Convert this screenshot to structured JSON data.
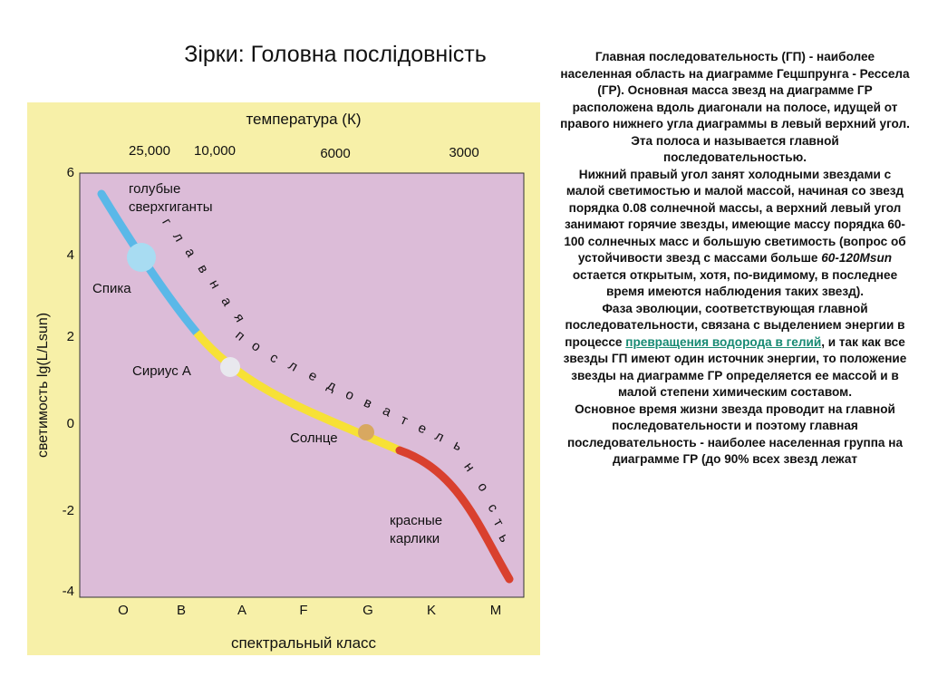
{
  "title": "Зірки: Головна послідовність",
  "diagram": {
    "axis_top_label": "температура (К)",
    "temperature_ticks": [
      "25,000",
      "10,000",
      "6000",
      "3000"
    ],
    "y_axis_label": "светимость lg(L/Lsun)",
    "y_ticks": [
      "6",
      "4",
      "2",
      "0",
      "-2",
      "-4"
    ],
    "x_axis_label": "спектральный класс",
    "spectral_classes": [
      "O",
      "B",
      "A",
      "F",
      "G",
      "K",
      "M"
    ],
    "band_label_chars": [
      "г",
      "л",
      "а",
      "в",
      "н",
      "а",
      "я",
      "п",
      "о",
      "с",
      "л",
      "е",
      "д",
      "о",
      "в",
      "а",
      "т",
      "е",
      "л",
      "ь",
      "н",
      "о",
      "с",
      "т",
      "ь"
    ],
    "labels": {
      "blue_supergiants_1": "голубые",
      "blue_supergiants_2": "сверхгиганты",
      "spica": "Спика",
      "sirius": "Сириус А",
      "sun": "Солнце",
      "red_dwarfs_1": "красные",
      "red_dwarfs_2": "карлики"
    },
    "colors": {
      "background": "#f7f0a8",
      "plot_area": "#dcbcd8",
      "hot_segment": "#5ab8e8",
      "mid_segment": "#f7e136",
      "cool_segment": "#d9402e",
      "spica_marker": "#a8dcf2",
      "sirius_marker": "#e8e8ee",
      "sun_marker": "#d8a860"
    }
  },
  "text": {
    "p1": "Главная последовательность (ГП) - наиболее населенная область на диаграмме Гецшпрунга - Рессела (ГР). Основная масса звезд на диаграмме ГР расположена вдоль диагонали на полосе, идущей от правого нижнего угла диаграммы в левый верхний угол. Эта полоса и называется главной последовательностью.",
    "p2a": "Нижний правый угол занят холодными звездами с малой светимостью и малой массой, начиная со звезд порядка 0.08 солнечной массы, а верхний левый угол занимают горячие звезды, имеющие массу порядка 60-100 солнечных масс и большую светимость (вопрос об устойчивости звезд с массами больше ",
    "p2_em": "60-120Msun",
    "p2b": " остается открытым, хотя, по-видимому, в последнее время имеются наблюдения таких звезд).",
    "p3a": "Фаза эволюции, соответствующая главной последовательности, связана с выделением энергии в процессе ",
    "p3_link": "превращения водорода в гелий",
    "p3b": ", и так как все звезды ГП имеют один источник энергии, то положение звезды на диаграмме ГР определяется ее массой и в малой степени химическим составом.",
    "p4": "Основное время жизни звезда проводит на главной последовательности и поэтому главная последовательность - наиболее населенная группа на диаграмме ГР (до 90% всех звезд лежат"
  }
}
